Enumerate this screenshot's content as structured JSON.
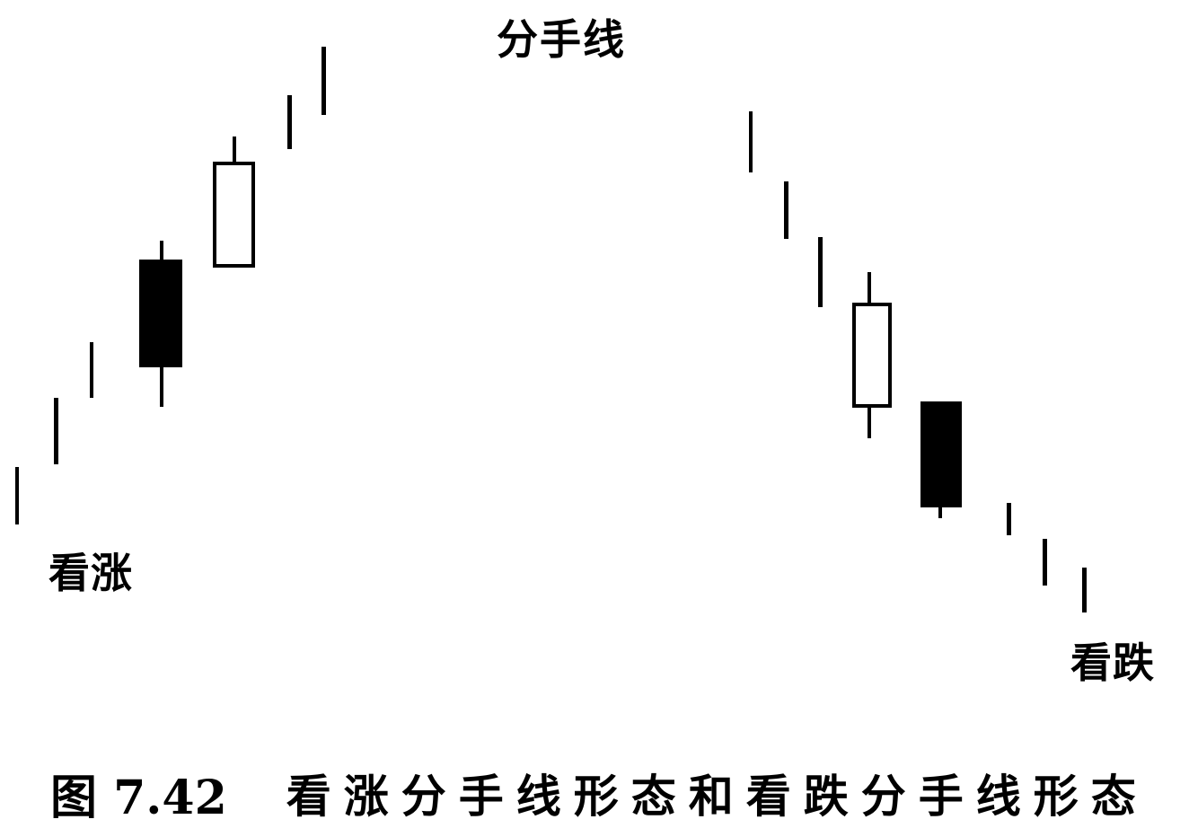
{
  "title": "分手线",
  "bullish_label": "看涨",
  "bearish_label": "看跌",
  "caption": {
    "figure_number": "图 7.42",
    "text": "看涨分手线形态和看跌分手线形态"
  },
  "colors": {
    "ink": "#000000",
    "paper": "#ffffff"
  },
  "patterns": [
    {
      "name": "bullish-separating-lines",
      "trend": "up",
      "candles": [
        "line",
        "line",
        "line",
        "black",
        "white",
        "line",
        "line"
      ]
    },
    {
      "name": "bearish-separating-lines",
      "trend": "down",
      "candles": [
        "line",
        "line",
        "line",
        "white",
        "black",
        "line",
        "line",
        "line"
      ]
    }
  ]
}
